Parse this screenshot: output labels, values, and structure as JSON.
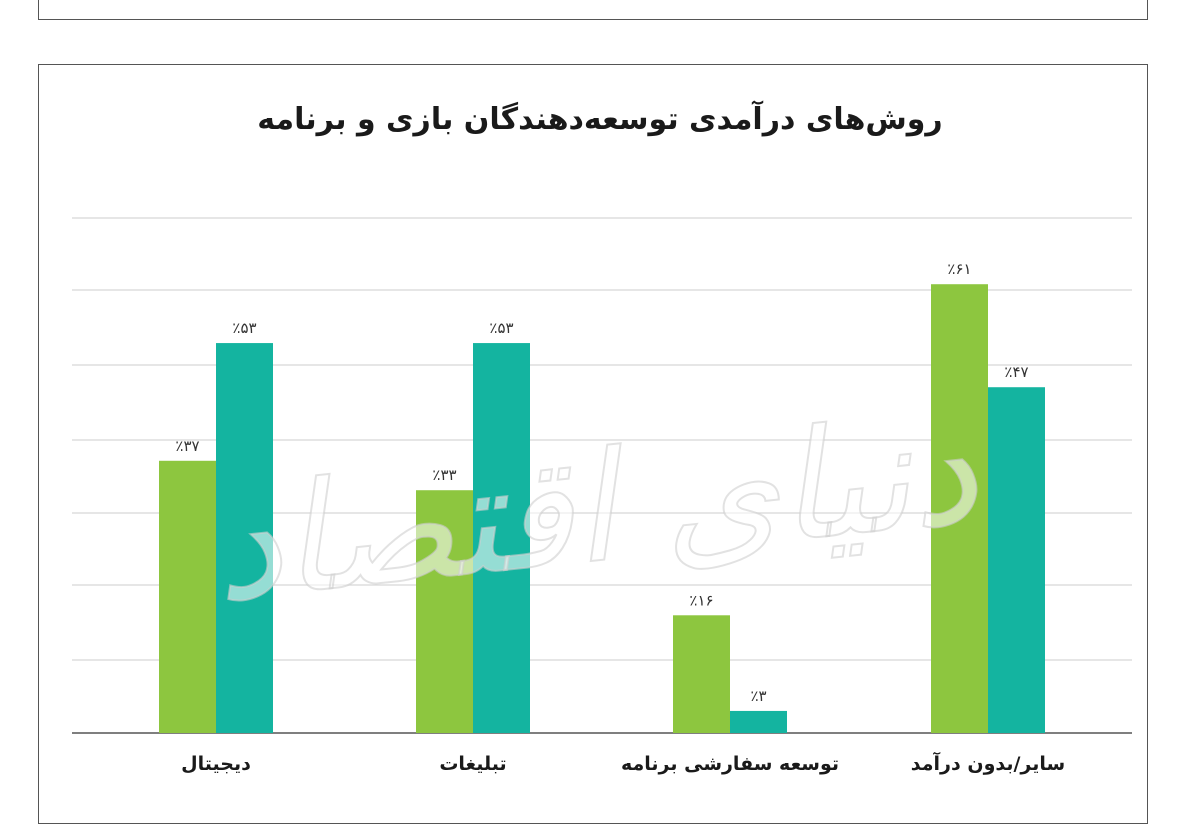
{
  "chart_data": {
    "type": "bar",
    "title": "روش‌های درآمدی توسعه‌دهندگان بازی و برنامه",
    "categories": [
      "دیجیتال",
      "تبلیغات",
      "توسعه سفارشی برنامه",
      "سایر/بدون درآمد"
    ],
    "series": [
      {
        "values": [
          37,
          33,
          16,
          61
        ],
        "labels": [
          "٪۳۷",
          "٪۳۳",
          "٪۱۶",
          "٪۶۱"
        ],
        "color": "#8dc63f"
      },
      {
        "values": [
          53,
          53,
          3,
          47
        ],
        "labels": [
          "٪۵۳",
          "٪۵۳",
          "٪۳",
          "٪۴۷"
        ],
        "color": "#14b4a0"
      }
    ],
    "ylim": [
      0,
      70
    ],
    "grid": true,
    "watermark": "دنیای اقتصاد"
  }
}
